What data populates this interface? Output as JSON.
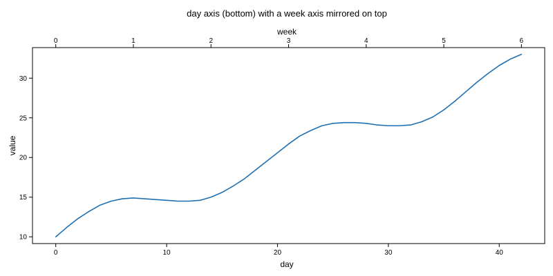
{
  "chart_data": {
    "type": "line",
    "title": "day axis (bottom) with a week axis mirrored on top",
    "xlabel": "day",
    "ylabel": "value",
    "secondary_xlabel": "week",
    "xlim": [
      -2.1,
      44.1
    ],
    "ylim": [
      9.15,
      33.85
    ],
    "x_ticks": [
      0,
      10,
      20,
      30,
      40
    ],
    "y_ticks": [
      10,
      15,
      20,
      25,
      30
    ],
    "secondary_x_ticks": [
      0,
      1,
      2,
      3,
      4,
      5,
      6
    ],
    "secondary_x_conversion": "week = day / 7",
    "grid": false,
    "series": [
      {
        "color": "#1f6fb0",
        "x": [
          0,
          1,
          2,
          3,
          4,
          5,
          6,
          7,
          8,
          9,
          10,
          11,
          12,
          13,
          14,
          15,
          16,
          17,
          18,
          19,
          20,
          21,
          22,
          23,
          24,
          25,
          26,
          27,
          28,
          29,
          30,
          31,
          32,
          33,
          34,
          35,
          36,
          37,
          38,
          39,
          40,
          41,
          42
        ],
        "y": [
          10.0,
          11.2,
          12.3,
          13.2,
          14.0,
          14.5,
          14.8,
          14.9,
          14.8,
          14.7,
          14.6,
          14.5,
          14.5,
          14.6,
          15.0,
          15.6,
          16.4,
          17.3,
          18.4,
          19.5,
          20.6,
          21.7,
          22.7,
          23.4,
          24.0,
          24.3,
          24.4,
          24.4,
          24.3,
          24.1,
          24.0,
          24.0,
          24.1,
          24.5,
          25.1,
          26.0,
          27.1,
          28.3,
          29.5,
          30.6,
          31.6,
          32.4,
          33.0
        ]
      }
    ]
  }
}
